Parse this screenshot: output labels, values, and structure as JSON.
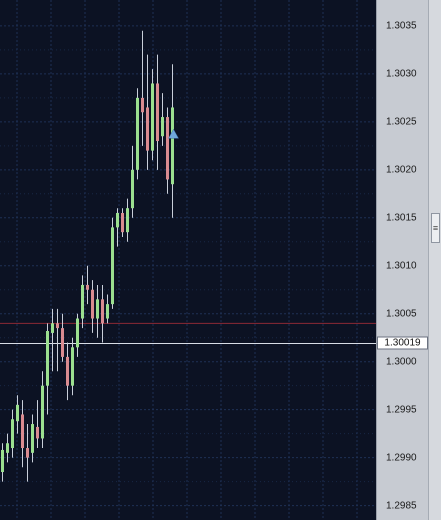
{
  "chart_data": {
    "type": "candlestick",
    "title": "",
    "xlabel": "",
    "ylabel": "",
    "ylim": [
      1.29835,
      1.30377
    ],
    "ticks": [
      "1.3035",
      "1.3030",
      "1.3025",
      "1.3020",
      "1.3015",
      "1.3010",
      "1.3005",
      "1.3000",
      "1.2995",
      "1.2990",
      "1.2985"
    ],
    "grid": true,
    "current_price": "1.30019",
    "horizontal_lines": [
      {
        "name": "red-level-line",
        "price": 1.3004,
        "color": "#8b2a35"
      },
      {
        "name": "current-price-line",
        "price": 1.30019,
        "color": "#d8dde6"
      }
    ],
    "marker": {
      "name": "blue-triangle",
      "price": 1.30237,
      "candle_index": 34,
      "color": "#6fa8dc"
    },
    "candles": [
      {
        "o": 1.29885,
        "h": 1.29915,
        "l": 1.29875,
        "c": 1.29908
      },
      {
        "o": 1.29905,
        "h": 1.29925,
        "l": 1.29895,
        "c": 1.29915
      },
      {
        "o": 1.2991,
        "h": 1.2995,
        "l": 1.299,
        "c": 1.2994
      },
      {
        "o": 1.29938,
        "h": 1.29965,
        "l": 1.29925,
        "c": 1.29955
      },
      {
        "o": 1.29945,
        "h": 1.2996,
        "l": 1.2989,
        "c": 1.2991
      },
      {
        "o": 1.2991,
        "h": 1.29935,
        "l": 1.29875,
        "c": 1.299
      },
      {
        "o": 1.29905,
        "h": 1.29945,
        "l": 1.29895,
        "c": 1.29935
      },
      {
        "o": 1.29932,
        "h": 1.2996,
        "l": 1.2991,
        "c": 1.2992
      },
      {
        "o": 1.2992,
        "h": 1.2999,
        "l": 1.2991,
        "c": 1.29975
      },
      {
        "o": 1.29975,
        "h": 1.3004,
        "l": 1.29945,
        "c": 1.30032
      },
      {
        "o": 1.3003,
        "h": 1.30055,
        "l": 1.2999,
        "c": 1.3004
      },
      {
        "o": 1.3004,
        "h": 1.30055,
        "l": 1.2999,
        "c": 1.30035
      },
      {
        "o": 1.30035,
        "h": 1.3005,
        "l": 1.3,
        "c": 1.30005
      },
      {
        "o": 1.30005,
        "h": 1.3002,
        "l": 1.2996,
        "c": 1.29975
      },
      {
        "o": 1.29975,
        "h": 1.30025,
        "l": 1.29965,
        "c": 1.30015
      },
      {
        "o": 1.30015,
        "h": 1.3005,
        "l": 1.30005,
        "c": 1.30045
      },
      {
        "o": 1.30045,
        "h": 1.3009,
        "l": 1.30035,
        "c": 1.3008
      },
      {
        "o": 1.3008,
        "h": 1.301,
        "l": 1.3006,
        "c": 1.30075
      },
      {
        "o": 1.30075,
        "h": 1.30085,
        "l": 1.3003,
        "c": 1.30045
      },
      {
        "o": 1.30045,
        "h": 1.3008,
        "l": 1.30025,
        "c": 1.30065
      },
      {
        "o": 1.30065,
        "h": 1.3008,
        "l": 1.3002,
        "c": 1.3004
      },
      {
        "o": 1.30045,
        "h": 1.3007,
        "l": 1.3004,
        "c": 1.3006
      },
      {
        "o": 1.3006,
        "h": 1.3015,
        "l": 1.30055,
        "c": 1.3014
      },
      {
        "o": 1.3014,
        "h": 1.3016,
        "l": 1.3012,
        "c": 1.30155
      },
      {
        "o": 1.30155,
        "h": 1.3016,
        "l": 1.3013,
        "c": 1.30135
      },
      {
        "o": 1.30135,
        "h": 1.3017,
        "l": 1.30125,
        "c": 1.3016
      },
      {
        "o": 1.3016,
        "h": 1.30225,
        "l": 1.3015,
        "c": 1.302
      },
      {
        "o": 1.302,
        "h": 1.30285,
        "l": 1.3019,
        "c": 1.30275
      },
      {
        "o": 1.30275,
        "h": 1.30345,
        "l": 1.30225,
        "c": 1.3026
      },
      {
        "o": 1.30265,
        "h": 1.3032,
        "l": 1.302,
        "c": 1.3022
      },
      {
        "o": 1.3022,
        "h": 1.30305,
        "l": 1.3021,
        "c": 1.3029
      },
      {
        "o": 1.3029,
        "h": 1.3032,
        "l": 1.302,
        "c": 1.3023
      },
      {
        "o": 1.30235,
        "h": 1.3028,
        "l": 1.30225,
        "c": 1.30255
      },
      {
        "o": 1.30255,
        "h": 1.30265,
        "l": 1.30175,
        "c": 1.3019
      },
      {
        "o": 1.30185,
        "h": 1.3031,
        "l": 1.3015,
        "c": 1.30265
      }
    ]
  },
  "colors": {
    "background": "#0c1223",
    "grid": "#1e3054",
    "bull": "#9bdf8f",
    "bear": "#d98b90",
    "wick": "#c9cfda"
  },
  "axis": {
    "splitter_icon": "grip-lines-icon",
    "splitter_glyph": "≡"
  }
}
